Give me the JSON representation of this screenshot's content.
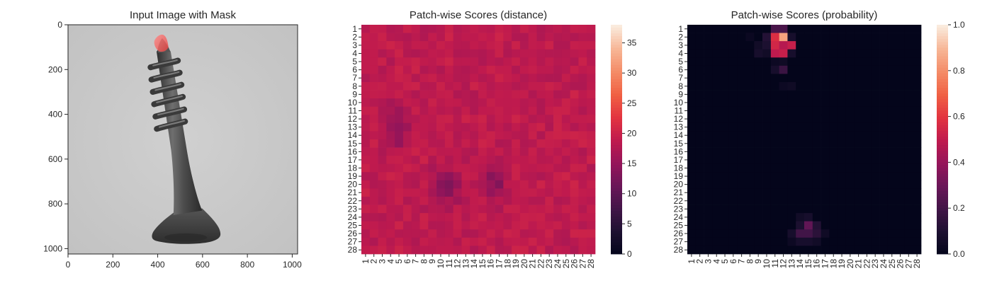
{
  "figure": {
    "panels": [
      {
        "title": "Input Image with Mask"
      },
      {
        "title": "Patch-wise Scores (distance)"
      },
      {
        "title": "Patch-wise Scores (probability)"
      }
    ]
  },
  "chart_data": [
    {
      "type": "image",
      "title": "Input Image with Mask",
      "xlim": [
        0,
        1024
      ],
      "ylim": [
        1024,
        0
      ],
      "xticks": [
        0,
        200,
        400,
        600,
        800,
        1000
      ],
      "yticks": [
        0,
        200,
        400,
        600,
        800,
        1000
      ],
      "image_subject": "grayscale photo of a screw on a light grey background, with a red anomaly mask at the screw tip",
      "mask_color": "#e8413f"
    },
    {
      "type": "heatmap",
      "title": "Patch-wise Scores (distance)",
      "rows": 28,
      "cols": 28,
      "colormap": "rocket",
      "vmin": 0,
      "vmax": 38,
      "baseline": 19,
      "colorbar_ticks": [
        0,
        5,
        10,
        15,
        20,
        25,
        30,
        35
      ],
      "hotspots": [
        {
          "row": 3,
          "col": 11.5,
          "peak": 38,
          "spread_rows": 1.1,
          "spread_cols": 1.2
        },
        {
          "row": 25.5,
          "col": 15,
          "peak": 33,
          "spread_rows": 1.4,
          "spread_cols": 1.5
        },
        {
          "row": 15.5,
          "col": 14,
          "peak": 26,
          "spread_rows": 5.0,
          "spread_cols": 0.8
        },
        {
          "row": 19.5,
          "col": 24.5,
          "peak": 25,
          "spread_rows": 4.0,
          "spread_cols": 1.8
        },
        {
          "row": 4.5,
          "col": 4,
          "peak": 23,
          "spread_rows": 2.0,
          "spread_cols": 1.5
        }
      ],
      "low_regions": [
        {
          "row": 20.5,
          "col": 10.5,
          "low": 14,
          "spread_rows": 1.5,
          "spread_cols": 1.2
        },
        {
          "row": 19.5,
          "col": 16.5,
          "low": 14,
          "spread_rows": 1.5,
          "spread_cols": 1.0
        },
        {
          "row": 13,
          "col": 5,
          "low": 15,
          "spread_rows": 2.0,
          "spread_cols": 1.0
        }
      ]
    },
    {
      "type": "heatmap",
      "title": "Patch-wise Scores (probability)",
      "rows": 28,
      "cols": 28,
      "colormap": "rocket",
      "vmin": 0.0,
      "vmax": 1.0,
      "colorbar_ticks": [
        0.0,
        0.2,
        0.4,
        0.6,
        0.8,
        1.0
      ],
      "cells": [
        {
          "row": 1,
          "col": 11,
          "value": 0.22
        },
        {
          "row": 1,
          "col": 12,
          "value": 0.22
        },
        {
          "row": 2,
          "col": 10,
          "value": 0.12
        },
        {
          "row": 2,
          "col": 11,
          "value": 0.58
        },
        {
          "row": 2,
          "col": 12,
          "value": 0.85
        },
        {
          "row": 2,
          "col": 13,
          "value": 0.08
        },
        {
          "row": 3,
          "col": 10,
          "value": 0.1
        },
        {
          "row": 3,
          "col": 11,
          "value": 0.55
        },
        {
          "row": 3,
          "col": 12,
          "value": 0.48
        },
        {
          "row": 3,
          "col": 13,
          "value": 0.52
        },
        {
          "row": 3,
          "col": 9,
          "value": 0.06
        },
        {
          "row": 4,
          "col": 9,
          "value": 0.08
        },
        {
          "row": 4,
          "col": 10,
          "value": 0.06
        },
        {
          "row": 4,
          "col": 11,
          "value": 0.5
        },
        {
          "row": 4,
          "col": 12,
          "value": 0.52
        },
        {
          "row": 4,
          "col": 13,
          "value": 0.08
        },
        {
          "row": 5,
          "col": 11,
          "value": 0.04
        },
        {
          "row": 5,
          "col": 12,
          "value": 0.05
        },
        {
          "row": 6,
          "col": 11,
          "value": 0.08
        },
        {
          "row": 6,
          "col": 12,
          "value": 0.18
        },
        {
          "row": 2,
          "col": 8,
          "value": 0.03
        },
        {
          "row": 8,
          "col": 12,
          "value": 0.04
        },
        {
          "row": 8,
          "col": 13,
          "value": 0.05
        },
        {
          "row": 24,
          "col": 14,
          "value": 0.06
        },
        {
          "row": 24,
          "col": 15,
          "value": 0.08
        },
        {
          "row": 25,
          "col": 14,
          "value": 0.1
        },
        {
          "row": 25,
          "col": 15,
          "value": 0.28
        },
        {
          "row": 25,
          "col": 16,
          "value": 0.12
        },
        {
          "row": 26,
          "col": 13,
          "value": 0.08
        },
        {
          "row": 26,
          "col": 14,
          "value": 0.2
        },
        {
          "row": 26,
          "col": 15,
          "value": 0.2
        },
        {
          "row": 26,
          "col": 16,
          "value": 0.14
        },
        {
          "row": 26,
          "col": 17,
          "value": 0.05
        },
        {
          "row": 27,
          "col": 13,
          "value": 0.04
        },
        {
          "row": 27,
          "col": 14,
          "value": 0.08
        },
        {
          "row": 27,
          "col": 15,
          "value": 0.08
        },
        {
          "row": 27,
          "col": 16,
          "value": 0.06
        }
      ]
    }
  ]
}
